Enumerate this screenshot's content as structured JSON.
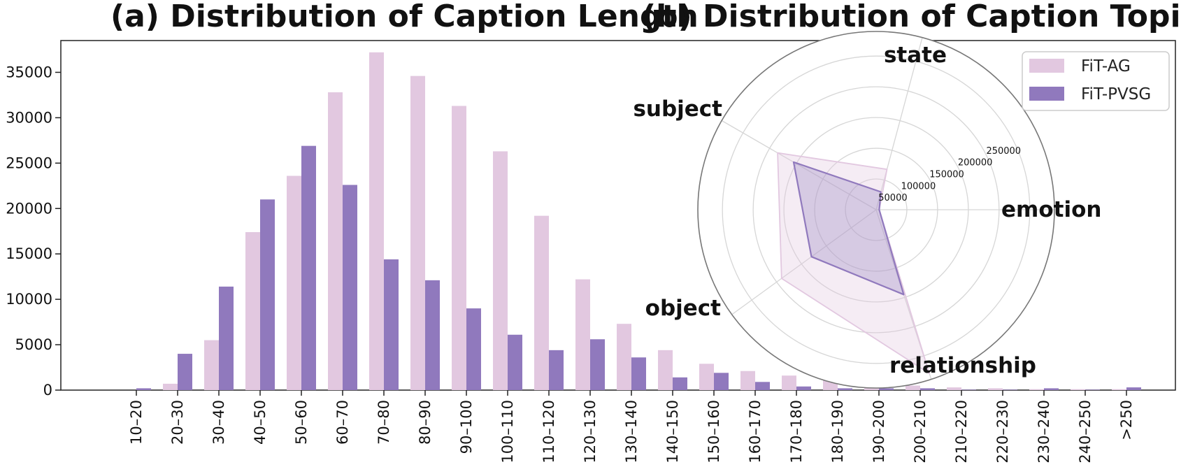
{
  "titles": {
    "a": "(a) Distribution of Caption Length",
    "b": "(b) Distribution of Caption Topic"
  },
  "legend": [
    {
      "name": "FiT-AG",
      "color": "#e2c8e0"
    },
    {
      "name": "FiT-PVSG",
      "color": "#9079bd"
    }
  ],
  "chart_data": [
    {
      "type": "bar",
      "title": "(a) Distribution of Caption Length",
      "categories": [
        "10–20",
        "20–30",
        "30–40",
        "40–50",
        "50–60",
        "60–70",
        "70–80",
        "80–90",
        "90–100",
        "100–110",
        "110–120",
        "120–130",
        "130–140",
        "140–150",
        "150–160",
        "160–170",
        "170–180",
        "180–190",
        "190–200",
        "200–210",
        "210–220",
        "220–230",
        "230–240",
        "240–250",
        ">250"
      ],
      "series": [
        {
          "name": "FiT-AG",
          "color": "#e2c8e0",
          "values": [
            0,
            700,
            5500,
            17400,
            23600,
            32800,
            37200,
            34600,
            31300,
            26300,
            19200,
            12200,
            7300,
            4400,
            2900,
            2100,
            1600,
            1200,
            800,
            500,
            300,
            200,
            100,
            100,
            100
          ]
        },
        {
          "name": "FiT-PVSG",
          "color": "#9079bd",
          "values": [
            200,
            4000,
            11400,
            21000,
            26900,
            22600,
            14400,
            12100,
            9000,
            6100,
            4400,
            5600,
            3600,
            1400,
            1900,
            900,
            400,
            200,
            200,
            200,
            50,
            50,
            200,
            50,
            300
          ]
        }
      ],
      "ylim": [
        0,
        38500
      ],
      "yticks": [
        0,
        5000,
        10000,
        15000,
        20000,
        25000,
        30000,
        35000
      ],
      "grid": false
    },
    {
      "type": "radar",
      "title": "(b) Distribution of Caption Topic",
      "categories": [
        "emotion",
        "state",
        "subject",
        "object",
        "relationship"
      ],
      "angles_deg": [
        0,
        75,
        150,
        216,
        288
      ],
      "rlim": [
        0,
        290000
      ],
      "rticks": [
        50000,
        100000,
        150000,
        200000,
        250000
      ],
      "series": [
        {
          "name": "FiT-AG",
          "color": "#e2c8e0",
          "values": [
            5000,
            68000,
            185000,
            190000,
            280000
          ]
        },
        {
          "name": "FiT-PVSG",
          "color": "#9079bd",
          "values": [
            5000,
            30000,
            155000,
            130000,
            145000
          ]
        }
      ]
    }
  ]
}
